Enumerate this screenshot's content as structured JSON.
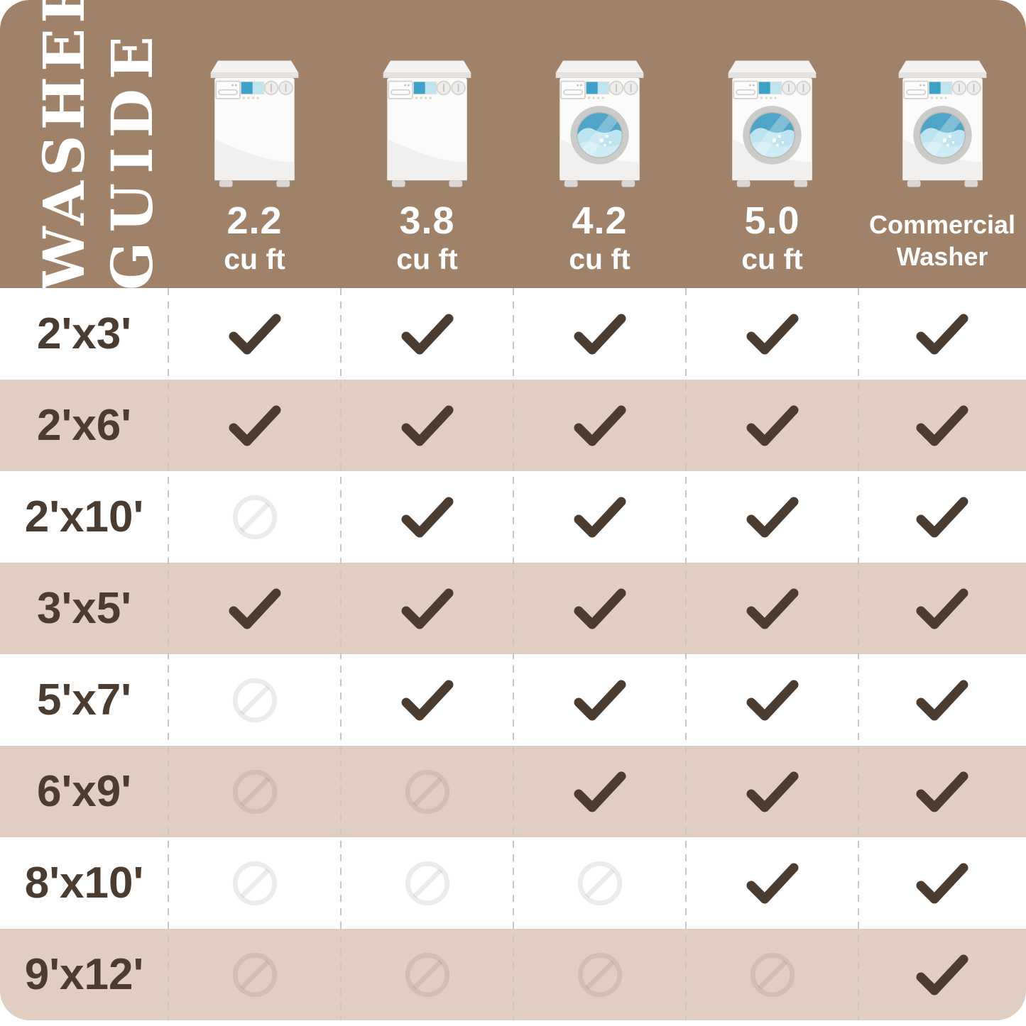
{
  "title": {
    "line1": "WASHER",
    "line2": "GUIDE"
  },
  "colors": {
    "header_background": "#a08269",
    "row_stripe": "#dfcec1",
    "row_base": "#ffffff",
    "ink": "#4a3c30",
    "display_blue_dark": "#3fa0c8",
    "water_blue": "#4fa5c7",
    "water_blue_light": "#bce3ef"
  },
  "header": {
    "columns": [
      {
        "label": "2.2",
        "sublabel": "cu ft",
        "washer_type": "top-load"
      },
      {
        "label": "3.8",
        "sublabel": "cu ft",
        "washer_type": "top-load"
      },
      {
        "label": "4.2",
        "sublabel": "cu ft",
        "washer_type": "front-load"
      },
      {
        "label": "5.0",
        "sublabel": "cu ft",
        "washer_type": "front-load"
      },
      {
        "label": "Commercial",
        "sublabel": "Washer",
        "washer_type": "front-load"
      }
    ]
  },
  "table": {
    "rows": [
      {
        "label": "2'x3'",
        "cells": [
          "check",
          "check",
          "check",
          "check",
          "check"
        ]
      },
      {
        "label": "2'x6'",
        "cells": [
          "check",
          "check",
          "check",
          "check",
          "check"
        ]
      },
      {
        "label": "2'x10'",
        "cells": [
          "no",
          "check",
          "check",
          "check",
          "check"
        ]
      },
      {
        "label": "3'x5'",
        "cells": [
          "check",
          "check",
          "check",
          "check",
          "check"
        ]
      },
      {
        "label": "5'x7'",
        "cells": [
          "no",
          "check",
          "check",
          "check",
          "check"
        ]
      },
      {
        "label": "6'x9'",
        "cells": [
          "no",
          "no",
          "check",
          "check",
          "check"
        ]
      },
      {
        "label": "8'x10'",
        "cells": [
          "no",
          "no",
          "no",
          "check",
          "check"
        ]
      },
      {
        "label": "9'x12'",
        "cells": [
          "no",
          "no",
          "no",
          "no",
          "check"
        ]
      }
    ]
  },
  "chart_data": {
    "type": "table",
    "title": "WASHER GUIDE",
    "columns": [
      "2.2 cu ft",
      "3.8 cu ft",
      "4.2 cu ft",
      "5.0 cu ft",
      "Commercial Washer"
    ],
    "row_labels": [
      "2'x3'",
      "2'x6'",
      "2'x10'",
      "3'x5'",
      "5'x7'",
      "6'x9'",
      "8'x10'",
      "9'x12'"
    ],
    "fits": [
      [
        true,
        true,
        true,
        true,
        true
      ],
      [
        true,
        true,
        true,
        true,
        true
      ],
      [
        false,
        true,
        true,
        true,
        true
      ],
      [
        true,
        true,
        true,
        true,
        true
      ],
      [
        false,
        true,
        true,
        true,
        true
      ],
      [
        false,
        false,
        true,
        true,
        true
      ],
      [
        false,
        false,
        false,
        true,
        true
      ],
      [
        false,
        false,
        false,
        false,
        true
      ]
    ],
    "cell_symbols": {
      "true": "checkmark",
      "false": "prohibition-circle"
    }
  }
}
